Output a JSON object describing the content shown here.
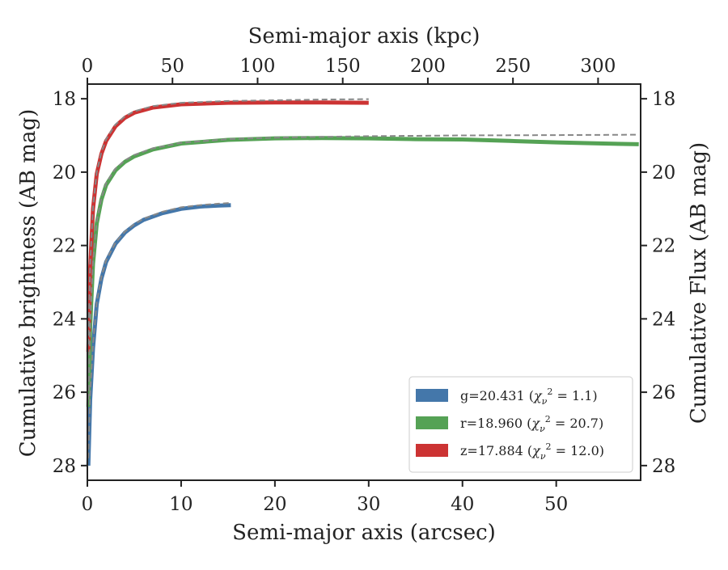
{
  "chart_data": {
    "type": "line",
    "x_bottom": {
      "label": "Semi-major axis (arcsec)",
      "range": [
        0,
        59
      ],
      "ticks": [
        0,
        10,
        20,
        30,
        40,
        50
      ]
    },
    "x_top": {
      "label": "Semi-major axis (kpc)",
      "range": [
        0,
        325
      ],
      "ticks": [
        0,
        50,
        100,
        150,
        200,
        250,
        300
      ]
    },
    "y_left": {
      "label": "Cumulative brightness (AB mag)",
      "range": [
        28.4,
        17.6
      ],
      "inverted": true,
      "ticks": [
        18,
        20,
        22,
        24,
        26,
        28
      ]
    },
    "y_right": {
      "label": "Cumulative Flux (AB mag)",
      "range": [
        28.4,
        17.6
      ],
      "inverted": true,
      "ticks": [
        18,
        20,
        22,
        24,
        26,
        28
      ]
    },
    "legend_position": "lower-right",
    "series": [
      {
        "name": "g=20.431",
        "chi2_value": "1.1",
        "color": "#4477aa",
        "x": [
          0.1,
          0.3,
          0.6,
          1.0,
          1.5,
          2.0,
          3.0,
          4.0,
          5.0,
          6.0,
          8.0,
          10.0,
          12.0,
          14.0,
          15.3
        ],
        "y": [
          28.0,
          26.2,
          24.8,
          23.6,
          22.9,
          22.45,
          21.95,
          21.65,
          21.45,
          21.3,
          21.12,
          21.0,
          20.94,
          20.91,
          20.9
        ],
        "model_x": [
          0.1,
          0.3,
          0.6,
          1.0,
          1.5,
          2.0,
          3.0,
          4.0,
          5.0,
          6.0,
          8.0,
          10.0,
          12.0,
          14.0,
          15.3
        ],
        "model_y": [
          27.8,
          26.0,
          24.7,
          23.55,
          22.85,
          22.4,
          21.92,
          21.62,
          21.42,
          21.27,
          21.08,
          20.96,
          20.9,
          20.86,
          20.84
        ]
      },
      {
        "name": "r=18.960",
        "chi2_value": "20.7",
        "color": "#55a255",
        "x": [
          0.1,
          0.3,
          0.6,
          1.0,
          1.5,
          2.0,
          3.0,
          4.0,
          5.0,
          7.0,
          10.0,
          15.0,
          20.0,
          25.0,
          30.0,
          35.0,
          40.0,
          45.0,
          50.0,
          55.0,
          58.8
        ],
        "y": [
          26.4,
          24.2,
          22.5,
          21.4,
          20.75,
          20.35,
          19.95,
          19.72,
          19.57,
          19.38,
          19.22,
          19.12,
          19.08,
          19.07,
          19.08,
          19.1,
          19.11,
          19.15,
          19.19,
          19.22,
          19.24
        ],
        "model_x": [
          0.1,
          0.3,
          0.6,
          1.0,
          1.5,
          2.0,
          3.0,
          4.0,
          5.0,
          7.0,
          10.0,
          15.0,
          20.0,
          25.0,
          30.0,
          40.0,
          50.0,
          58.8
        ],
        "model_y": [
          26.2,
          24.1,
          22.45,
          21.35,
          20.7,
          20.3,
          19.9,
          19.68,
          19.53,
          19.35,
          19.2,
          19.1,
          19.06,
          19.04,
          19.02,
          19.0,
          18.99,
          18.98
        ]
      },
      {
        "name": "z=17.884",
        "chi2_value": "12.0",
        "color": "#cc3333",
        "x": [
          0.1,
          0.3,
          0.6,
          1.0,
          1.5,
          2.0,
          3.0,
          4.0,
          5.0,
          7.0,
          10.0,
          15.0,
          20.0,
          25.0,
          30.0
        ],
        "y": [
          24.9,
          22.6,
          21.0,
          20.05,
          19.5,
          19.15,
          18.75,
          18.52,
          18.38,
          18.24,
          18.15,
          18.11,
          18.1,
          18.1,
          18.11
        ],
        "model_x": [
          0.1,
          0.3,
          0.6,
          1.0,
          1.5,
          2.0,
          3.0,
          4.0,
          5.0,
          7.0,
          10.0,
          15.0,
          20.0,
          25.0,
          30.0
        ],
        "model_y": [
          24.7,
          22.5,
          20.95,
          20.0,
          19.45,
          19.1,
          18.7,
          18.48,
          18.34,
          18.2,
          18.11,
          18.06,
          18.04,
          18.02,
          18.01
        ]
      }
    ]
  }
}
